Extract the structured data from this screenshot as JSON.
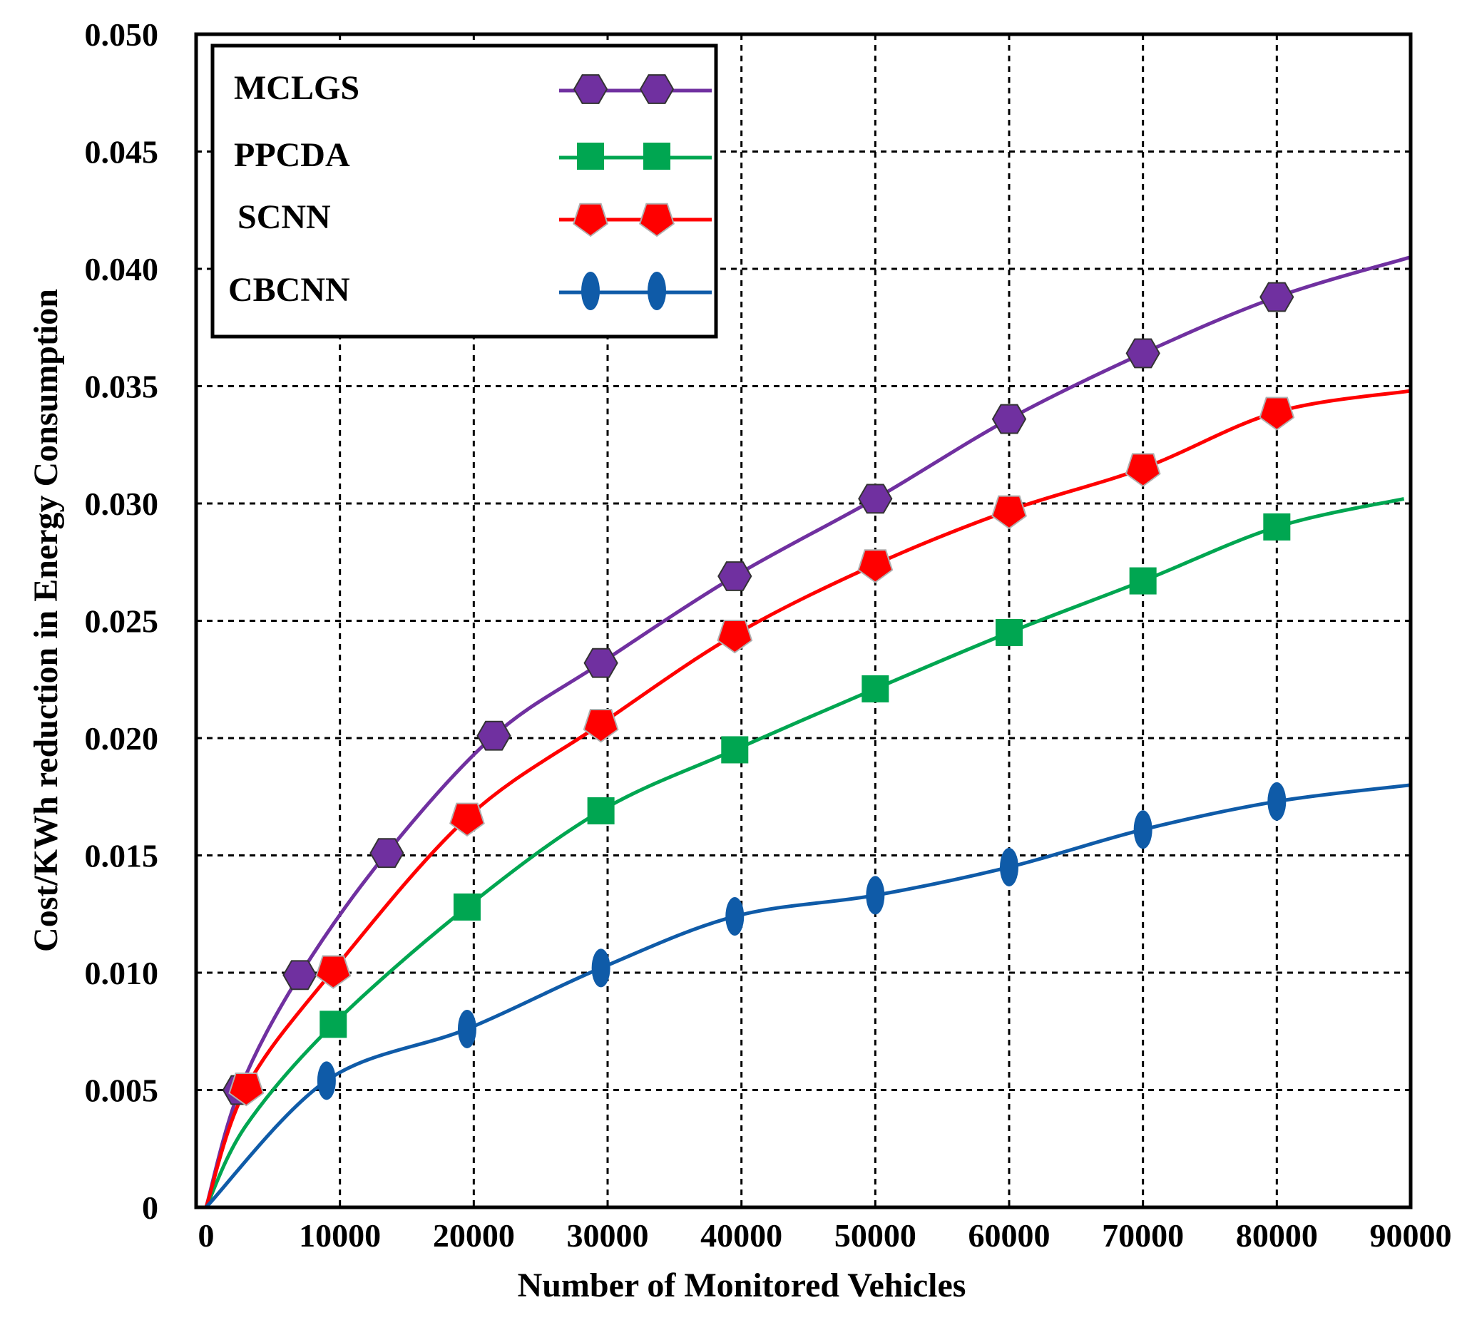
{
  "chart_data": {
    "type": "line",
    "title": "",
    "xlabel": "Number of Monitored Vehicles",
    "ylabel": "Cost/KWh reduction in Energy Consumption",
    "xlim": [
      0,
      90000
    ],
    "ylim": [
      0,
      0.05
    ],
    "xticks": [
      0,
      10000,
      20000,
      30000,
      40000,
      50000,
      60000,
      70000,
      80000,
      90000
    ],
    "xtick_labels": [
      "0",
      "10000",
      "20000",
      "30000",
      "40000",
      "50000",
      "60000",
      "70000",
      "80000",
      "90000"
    ],
    "yticks": [
      0,
      0.005,
      0.01,
      0.015,
      0.02,
      0.025,
      0.03,
      0.035,
      0.04,
      0.045,
      0.05
    ],
    "ytick_labels": [
      "0",
      "0.005",
      "0.010",
      "0.015",
      "0.020",
      "0.025",
      "0.030",
      "0.035",
      "0.040",
      "0.045",
      "0.050"
    ],
    "grid": true,
    "legend_position": "top-left",
    "series": [
      {
        "name": "MCLGS",
        "color": "#7030A0",
        "marker": "hexagon",
        "curve": [
          [
            0,
            0
          ],
          [
            2500,
            0.005
          ],
          [
            7000,
            0.0099
          ],
          [
            13500,
            0.0151
          ],
          [
            21500,
            0.0201
          ],
          [
            29500,
            0.0232
          ],
          [
            39500,
            0.0269
          ],
          [
            50000,
            0.0302
          ],
          [
            60000,
            0.0336
          ],
          [
            70000,
            0.0364
          ],
          [
            80000,
            0.0388
          ],
          [
            90000,
            0.0405
          ]
        ],
        "markers": [
          [
            2500,
            0.005
          ],
          [
            7000,
            0.0099
          ],
          [
            13500,
            0.0151
          ],
          [
            21500,
            0.0201
          ],
          [
            29500,
            0.0232
          ],
          [
            39500,
            0.0269
          ],
          [
            50000,
            0.0302
          ],
          [
            60000,
            0.0336
          ],
          [
            70000,
            0.0364
          ],
          [
            80000,
            0.0388
          ]
        ]
      },
      {
        "name": "PPCDA",
        "color": "#00A651",
        "marker": "square",
        "curve": [
          [
            0,
            0
          ],
          [
            3000,
            0.0035
          ],
          [
            9500,
            0.0078
          ],
          [
            19500,
            0.0128
          ],
          [
            29500,
            0.0169
          ],
          [
            39500,
            0.0195
          ],
          [
            50000,
            0.0221
          ],
          [
            60000,
            0.0245
          ],
          [
            70000,
            0.0267
          ],
          [
            80000,
            0.029
          ],
          [
            89500,
            0.0302
          ]
        ],
        "markers": [
          [
            9500,
            0.0078
          ],
          [
            19500,
            0.0128
          ],
          [
            29500,
            0.0169
          ],
          [
            39500,
            0.0195
          ],
          [
            50000,
            0.0221
          ],
          [
            60000,
            0.0245
          ],
          [
            70000,
            0.0267
          ],
          [
            80000,
            0.029
          ]
        ]
      },
      {
        "name": "SCNN",
        "color": "#FF0000",
        "marker": "pentagon",
        "curve": [
          [
            0,
            0
          ],
          [
            3000,
            0.0051
          ],
          [
            9500,
            0.0101
          ],
          [
            19500,
            0.0166
          ],
          [
            29500,
            0.0206
          ],
          [
            39500,
            0.0244
          ],
          [
            50000,
            0.0274
          ],
          [
            60000,
            0.0297
          ],
          [
            70000,
            0.0315
          ],
          [
            80000,
            0.0339
          ],
          [
            90000,
            0.0348
          ]
        ],
        "markers": [
          [
            3000,
            0.0051
          ],
          [
            9500,
            0.0101
          ],
          [
            19500,
            0.0166
          ],
          [
            29500,
            0.0206
          ],
          [
            39500,
            0.0244
          ],
          [
            50000,
            0.0274
          ],
          [
            60000,
            0.0297
          ],
          [
            70000,
            0.0315
          ],
          [
            80000,
            0.0339
          ]
        ]
      },
      {
        "name": "CBCNN",
        "color": "#0F5BA8",
        "marker": "ellipse",
        "curve": [
          [
            0,
            0
          ],
          [
            9000,
            0.0054
          ],
          [
            19500,
            0.0076
          ],
          [
            29500,
            0.0102
          ],
          [
            39500,
            0.0124
          ],
          [
            50000,
            0.0133
          ],
          [
            60000,
            0.0145
          ],
          [
            70000,
            0.0161
          ],
          [
            80000,
            0.0173
          ],
          [
            90000,
            0.018
          ]
        ],
        "markers": [
          [
            9000,
            0.0054
          ],
          [
            19500,
            0.0076
          ],
          [
            29500,
            0.0102
          ],
          [
            39500,
            0.0124
          ],
          [
            50000,
            0.0133
          ],
          [
            60000,
            0.0145
          ],
          [
            70000,
            0.0161
          ],
          [
            80000,
            0.0173
          ]
        ]
      }
    ]
  }
}
